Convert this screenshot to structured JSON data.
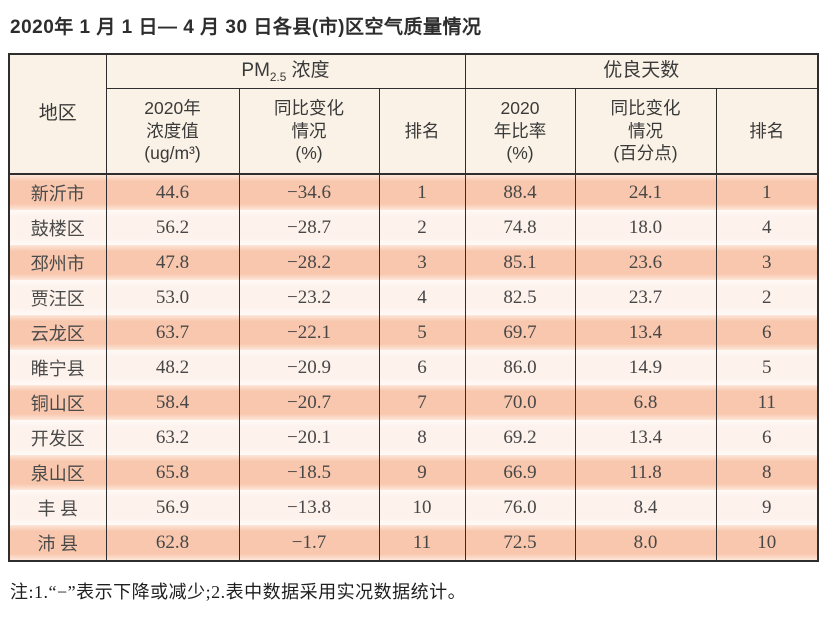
{
  "title": "2020年 1 月 1 日— 4 月 30 日各县(市)区空气质量情况",
  "colors": {
    "row_odd": "#f8c7ad",
    "row_even": "#fdf2ec",
    "header_bg": "#faf2e6",
    "border": "#2e2e2e"
  },
  "table": {
    "region_header": "地区",
    "pm_group": {
      "pm": "PM",
      "sub": "2.5",
      "rest": " 浓度"
    },
    "days_group": "优良天数",
    "sub_headers": {
      "pm_value": "2020年\n浓度值\n(ug/m³)",
      "pm_change": "同比变化\n情况\n(%)",
      "pm_rank": "排名",
      "days_ratio": "2020\n年比率\n(%)",
      "days_change": "同比变化\n情况\n(百分点)",
      "days_rank": "排名"
    },
    "rows": [
      {
        "region": "新沂市",
        "pm": "44.6",
        "pm_change": "−34.6",
        "pm_rank": "1",
        "days": "88.4",
        "days_change": "24.1",
        "days_rank": "1"
      },
      {
        "region": "鼓楼区",
        "pm": "56.2",
        "pm_change": "−28.7",
        "pm_rank": "2",
        "days": "74.8",
        "days_change": "18.0",
        "days_rank": "4"
      },
      {
        "region": "邳州市",
        "pm": "47.8",
        "pm_change": "−28.2",
        "pm_rank": "3",
        "days": "85.1",
        "days_change": "23.6",
        "days_rank": "3"
      },
      {
        "region": "贾汪区",
        "pm": "53.0",
        "pm_change": "−23.2",
        "pm_rank": "4",
        "days": "82.5",
        "days_change": "23.7",
        "days_rank": "2"
      },
      {
        "region": "云龙区",
        "pm": "63.7",
        "pm_change": "−22.1",
        "pm_rank": "5",
        "days": "69.7",
        "days_change": "13.4",
        "days_rank": "6"
      },
      {
        "region": "睢宁县",
        "pm": "48.2",
        "pm_change": "−20.9",
        "pm_rank": "6",
        "days": "86.0",
        "days_change": "14.9",
        "days_rank": "5"
      },
      {
        "region": "铜山区",
        "pm": "58.4",
        "pm_change": "−20.7",
        "pm_rank": "7",
        "days": "70.0",
        "days_change": "6.8",
        "days_rank": "11"
      },
      {
        "region": "开发区",
        "pm": "63.2",
        "pm_change": "−20.1",
        "pm_rank": "8",
        "days": "69.2",
        "days_change": "13.4",
        "days_rank": "6"
      },
      {
        "region": "泉山区",
        "pm": "65.8",
        "pm_change": "−18.5",
        "pm_rank": "9",
        "days": "66.9",
        "days_change": "11.8",
        "days_rank": "8"
      },
      {
        "region": "丰 县",
        "pm": "56.9",
        "pm_change": "−13.8",
        "pm_rank": "10",
        "days": "76.0",
        "days_change": "8.4",
        "days_rank": "9"
      },
      {
        "region": "沛 县",
        "pm": "62.8",
        "pm_change": "−1.7",
        "pm_rank": "11",
        "days": "72.5",
        "days_change": "8.0",
        "days_rank": "10"
      }
    ]
  },
  "footnote": "注:1.“−”表示下降或减少;2.表中数据采用实况数据统计。"
}
